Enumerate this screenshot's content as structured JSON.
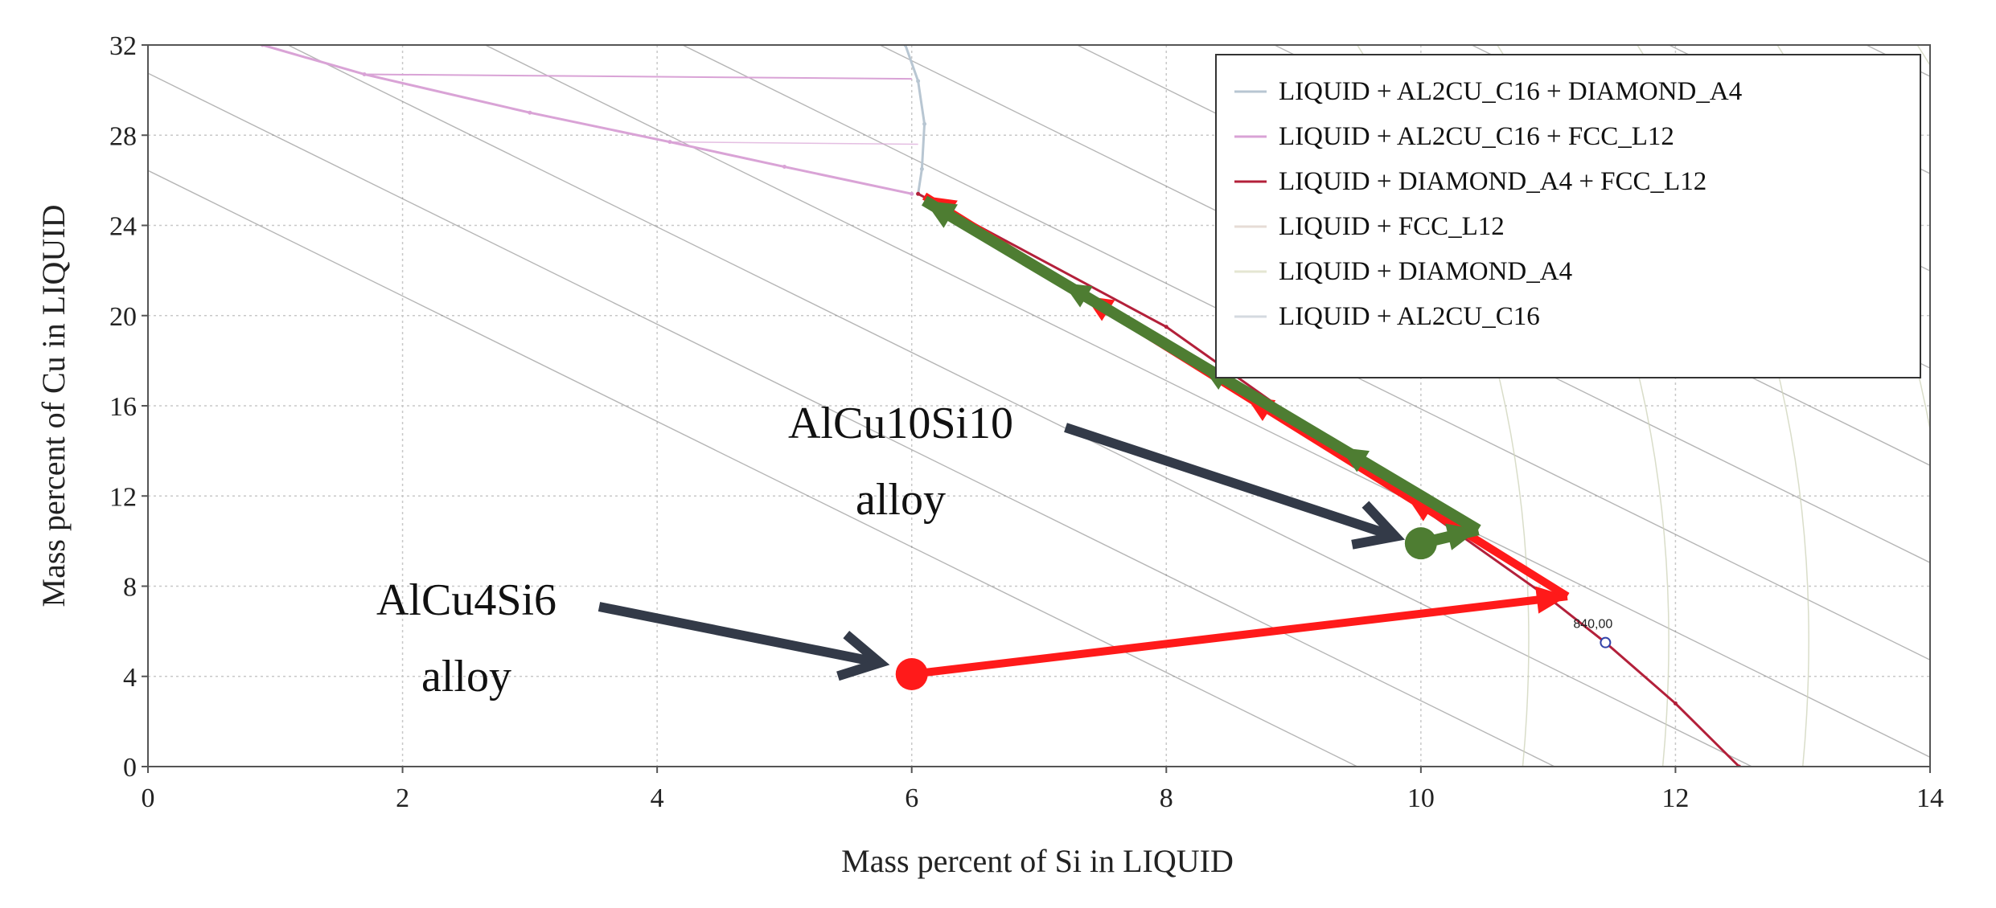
{
  "chart_data": {
    "type": "line",
    "title": "",
    "xlabel": "Mass percent of Si in LIQUID",
    "ylabel": "Mass percent of Cu in LIQUID",
    "xlim": [
      0,
      14
    ],
    "ylim": [
      0,
      32
    ],
    "x_ticks": [
      0,
      2,
      4,
      6,
      8,
      10,
      12,
      14
    ],
    "y_ticks": [
      0,
      4,
      8,
      12,
      16,
      20,
      24,
      28,
      32
    ],
    "grid": true,
    "legend_position": "top-right",
    "legend": [
      {
        "label": "LIQUID + AL2CU_C16 + DIAMOND_A4",
        "color": "#b8c6d2"
      },
      {
        "label": "LIQUID + AL2CU_C16 + FCC_L12",
        "color": "#d9a3d6"
      },
      {
        "label": "LIQUID + DIAMOND_A4 + FCC_L12",
        "color": "#b3203a"
      },
      {
        "label": "LIQUID + FCC_L12",
        "color": "#e6dcd6"
      },
      {
        "label": "LIQUID + DIAMOND_A4",
        "color": "#e4e6d2"
      },
      {
        "label": "LIQUID + AL2CU_C16",
        "color": "#d4dae0"
      }
    ],
    "series": [
      {
        "name": "LIQUID + AL2CU_C16 + FCC_L12",
        "color": "#d9a3d6",
        "x": [
          0.9,
          1.7,
          3.0,
          4.1,
          5.0,
          6.0
        ],
        "y": [
          32.0,
          30.7,
          29.0,
          27.7,
          26.6,
          25.4
        ]
      },
      {
        "name": "LIQUID + AL2CU_C16 + DIAMOND_A4",
        "color": "#b8c6d2",
        "x": [
          5.95,
          6.05,
          6.1,
          6.08,
          6.05
        ],
        "y": [
          32.0,
          30.4,
          28.5,
          26.5,
          25.4
        ]
      },
      {
        "name": "LIQUID + DIAMOND_A4 + FCC_L12",
        "color": "#b3203a",
        "x": [
          6.05,
          8.0,
          10.0,
          11.0,
          11.45,
          12.0,
          12.5
        ],
        "y": [
          25.4,
          19.5,
          11.5,
          7.5,
          5.5,
          2.8,
          0.0
        ]
      }
    ],
    "alloys": [
      {
        "name": "AlCu4Si6",
        "line2": "alloy",
        "x": 6.0,
        "y": 4.1,
        "color": "#ff1a1a"
      },
      {
        "name": "AlCu10Si10",
        "line2": "alloy",
        "x": 10.0,
        "y": 9.9,
        "color": "#4e7d32"
      }
    ],
    "paths": [
      {
        "alloy": "AlCu4Si6",
        "color": "#ff1a1a",
        "points": [
          [
            6.0,
            4.1
          ],
          [
            11.15,
            7.55
          ],
          [
            6.1,
            25.3
          ]
        ]
      },
      {
        "alloy": "AlCu10Si10",
        "color": "#4e7d32",
        "points": [
          [
            10.0,
            9.9
          ],
          [
            10.45,
            10.5
          ],
          [
            6.1,
            25.1
          ]
        ]
      }
    ],
    "marker_label": {
      "text": "840,00",
      "x": 11.45,
      "y": 5.5
    }
  }
}
